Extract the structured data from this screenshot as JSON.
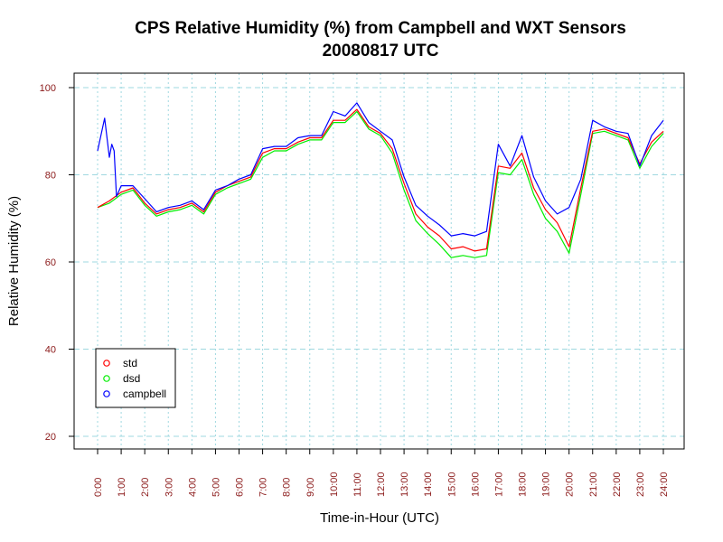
{
  "chart_data": {
    "type": "line",
    "title": "CPS Relative Humidity (%) from Campbell and WXT Sensors",
    "subtitle": "20080817  UTC",
    "xlabel": "Time-in-Hour (UTC)",
    "ylabel": "Relative Humidity (%)",
    "xlim": [
      -0.2,
      24.3
    ],
    "ylim": [
      17,
      103
    ],
    "grid": true,
    "legend_position": "bottom-left",
    "x_ticks": [
      0,
      1,
      2,
      3,
      4,
      5,
      6,
      7,
      8,
      9,
      10,
      11,
      12,
      13,
      14,
      15,
      16,
      17,
      18,
      19,
      20,
      21,
      22,
      23,
      24
    ],
    "x_tick_labels": [
      "0:00",
      "1:00",
      "2:00",
      "3:00",
      "4:00",
      "5:00",
      "6:00",
      "7:00",
      "8:00",
      "9:00",
      "10:00",
      "11:00",
      "12:00",
      "13:00",
      "14:00",
      "15:00",
      "16:00",
      "17:00",
      "18:00",
      "19:00",
      "20:00",
      "21:00",
      "22:00",
      "23:00",
      "24:00"
    ],
    "y_ticks": [
      20,
      40,
      60,
      80,
      100
    ],
    "y_tick_labels": [
      "20",
      "40",
      "60",
      "80",
      "100"
    ],
    "series": [
      {
        "name": "std",
        "color": "#ff0000",
        "x": [
          0,
          0.5,
          1,
          1.5,
          2,
          2.5,
          3,
          3.5,
          4,
          4.5,
          5,
          5.5,
          6,
          6.5,
          7,
          7.5,
          8,
          8.5,
          9,
          9.5,
          10,
          10.5,
          11,
          11.5,
          12,
          12.5,
          13,
          13.5,
          14,
          14.5,
          15,
          15.5,
          16,
          16.5,
          17,
          17.5,
          18,
          18.5,
          19,
          19.5,
          20,
          20.5,
          21,
          21.5,
          22,
          22.5,
          23,
          23.5,
          24
        ],
        "values": [
          72.5,
          74.0,
          76.0,
          77.0,
          73.5,
          71.0,
          72.0,
          72.5,
          73.5,
          71.5,
          76.0,
          77.5,
          78.5,
          79.5,
          85.0,
          86.0,
          86.0,
          87.5,
          88.5,
          88.5,
          92.5,
          92.5,
          95.0,
          91.0,
          89.5,
          86.0,
          78.0,
          71.0,
          68.0,
          66.0,
          63.0,
          63.5,
          62.5,
          63.0,
          82.0,
          81.5,
          85.0,
          77.0,
          72.0,
          69.0,
          63.5,
          77.0,
          90.0,
          90.5,
          89.5,
          88.5,
          82.5,
          87.5,
          90.0
        ]
      },
      {
        "name": "dsd",
        "color": "#00ee00",
        "x": [
          0,
          0.5,
          1,
          1.5,
          2,
          2.5,
          3,
          3.5,
          4,
          4.5,
          5,
          5.5,
          6,
          6.5,
          7,
          7.5,
          8,
          8.5,
          9,
          9.5,
          10,
          10.5,
          11,
          11.5,
          12,
          12.5,
          13,
          13.5,
          14,
          14.5,
          15,
          15.5,
          16,
          16.5,
          17,
          17.5,
          18,
          18.5,
          19,
          19.5,
          20,
          20.5,
          21,
          21.5,
          22,
          22.5,
          23,
          23.5,
          24
        ],
        "values": [
          72.5,
          73.5,
          75.5,
          76.5,
          73.0,
          70.5,
          71.5,
          72.0,
          73.0,
          71.0,
          75.5,
          77.0,
          78.0,
          79.0,
          84.0,
          85.5,
          85.5,
          87.0,
          88.0,
          88.0,
          92.0,
          92.0,
          94.5,
          90.5,
          89.0,
          85.0,
          76.5,
          69.5,
          66.5,
          64.0,
          61.0,
          61.5,
          61.0,
          61.5,
          80.5,
          80.0,
          83.5,
          75.5,
          70.0,
          67.0,
          62.0,
          75.5,
          89.5,
          90.0,
          89.0,
          88.0,
          81.5,
          86.5,
          89.5
        ]
      },
      {
        "name": "campbell",
        "color": "#0000ff",
        "x": [
          0,
          0.3,
          0.5,
          0.6,
          0.7,
          0.8,
          1,
          1.5,
          2,
          2.5,
          3,
          3.5,
          4,
          4.5,
          5,
          5.5,
          6,
          6.5,
          7,
          7.5,
          8,
          8.5,
          9,
          9.5,
          10,
          10.5,
          11,
          11.5,
          12,
          12.5,
          13,
          13.5,
          14,
          14.5,
          15,
          15.5,
          16,
          16.5,
          17,
          17.5,
          18,
          18.5,
          19,
          19.5,
          20,
          20.5,
          21,
          21.5,
          22,
          22.5,
          23,
          23.5,
          24
        ],
        "values": [
          85.5,
          93.0,
          84.0,
          87.0,
          85.5,
          75.0,
          77.5,
          77.5,
          74.5,
          71.5,
          72.5,
          73.0,
          74.0,
          72.0,
          76.5,
          77.5,
          79.0,
          80.0,
          86.0,
          86.5,
          86.5,
          88.5,
          89.0,
          89.0,
          94.5,
          93.5,
          96.5,
          92.0,
          90.0,
          88.0,
          79.5,
          73.0,
          70.5,
          68.5,
          66.0,
          66.5,
          66.0,
          67.0,
          87.0,
          82.0,
          89.0,
          79.5,
          74.0,
          71.0,
          72.5,
          79.0,
          92.5,
          91.0,
          90.0,
          89.5,
          82.0,
          89.0,
          92.5
        ]
      }
    ]
  }
}
